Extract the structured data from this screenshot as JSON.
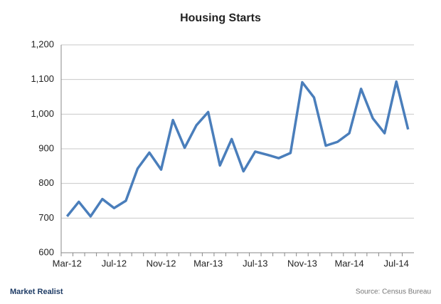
{
  "chart_data": {
    "type": "line",
    "title": "Housing Starts",
    "categories": [
      "Mar-12",
      null,
      null,
      null,
      "Jul-12",
      null,
      null,
      null,
      "Nov-12",
      null,
      null,
      null,
      "Mar-13",
      null,
      null,
      null,
      "Jul-13",
      null,
      null,
      null,
      "Nov-13",
      null,
      null,
      null,
      "Mar-14",
      null,
      null,
      null,
      "Jul-14",
      null
    ],
    "values": [
      705,
      747,
      705,
      755,
      729,
      750,
      843,
      889,
      840,
      983,
      903,
      968,
      1006,
      852,
      928,
      835,
      892,
      883,
      873,
      888,
      1092,
      1048,
      909,
      920,
      945,
      1073,
      988,
      945,
      1094,
      956
    ],
    "color": "#4a7ebb",
    "ylim": [
      600,
      1200
    ],
    "yticks": [
      600,
      700,
      800,
      900,
      {
        "value": 1000,
        "label": "1,000"
      },
      {
        "value": 1100,
        "label": "1,100"
      },
      {
        "value": 1200,
        "label": "1,200"
      }
    ],
    "grid": true
  },
  "footer": {
    "brand": "Market Realist",
    "source": "Source: Census Bureau"
  }
}
